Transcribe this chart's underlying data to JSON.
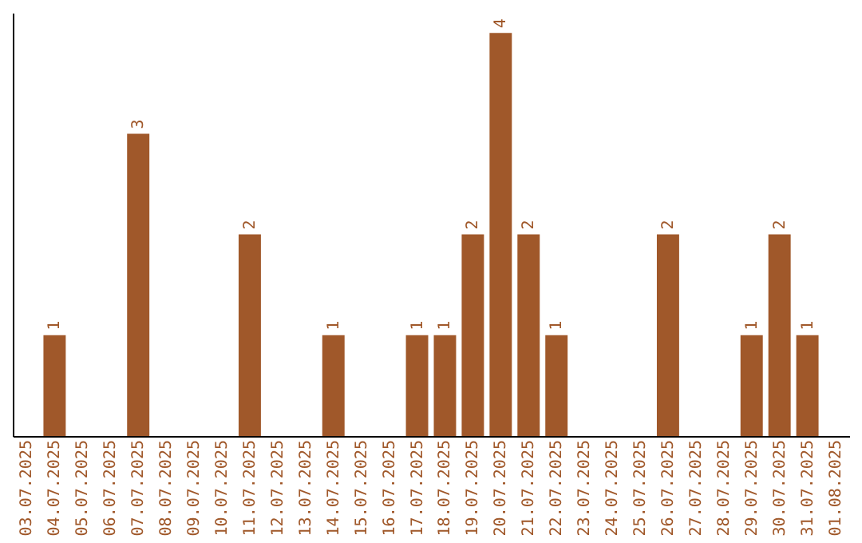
{
  "chart_data": {
    "type": "bar",
    "categories": [
      "03.07.2025",
      "04.07.2025",
      "05.07.2025",
      "06.07.2025",
      "07.07.2025",
      "08.07.2025",
      "09.07.2025",
      "10.07.2025",
      "11.07.2025",
      "12.07.2025",
      "13.07.2025",
      "14.07.2025",
      "15.07.2025",
      "16.07.2025",
      "17.07.2025",
      "18.07.2025",
      "19.07.2025",
      "20.07.2025",
      "21.07.2025",
      "22.07.2025",
      "23.07.2025",
      "24.07.2025",
      "25.07.2025",
      "26.07.2025",
      "27.07.2025",
      "28.07.2025",
      "29.07.2025",
      "30.07.2025",
      "31.07.2025",
      "01.08.2025"
    ],
    "values": [
      null,
      1,
      null,
      null,
      3,
      null,
      null,
      null,
      2,
      null,
      null,
      1,
      null,
      null,
      1,
      1,
      2,
      4,
      2,
      1,
      null,
      null,
      null,
      2,
      null,
      null,
      1,
      2,
      1,
      null
    ],
    "color": "#a0582a",
    "ylim": [
      0,
      4.2
    ],
    "data_labels": true,
    "tick_labels": "x",
    "grid": false
  }
}
